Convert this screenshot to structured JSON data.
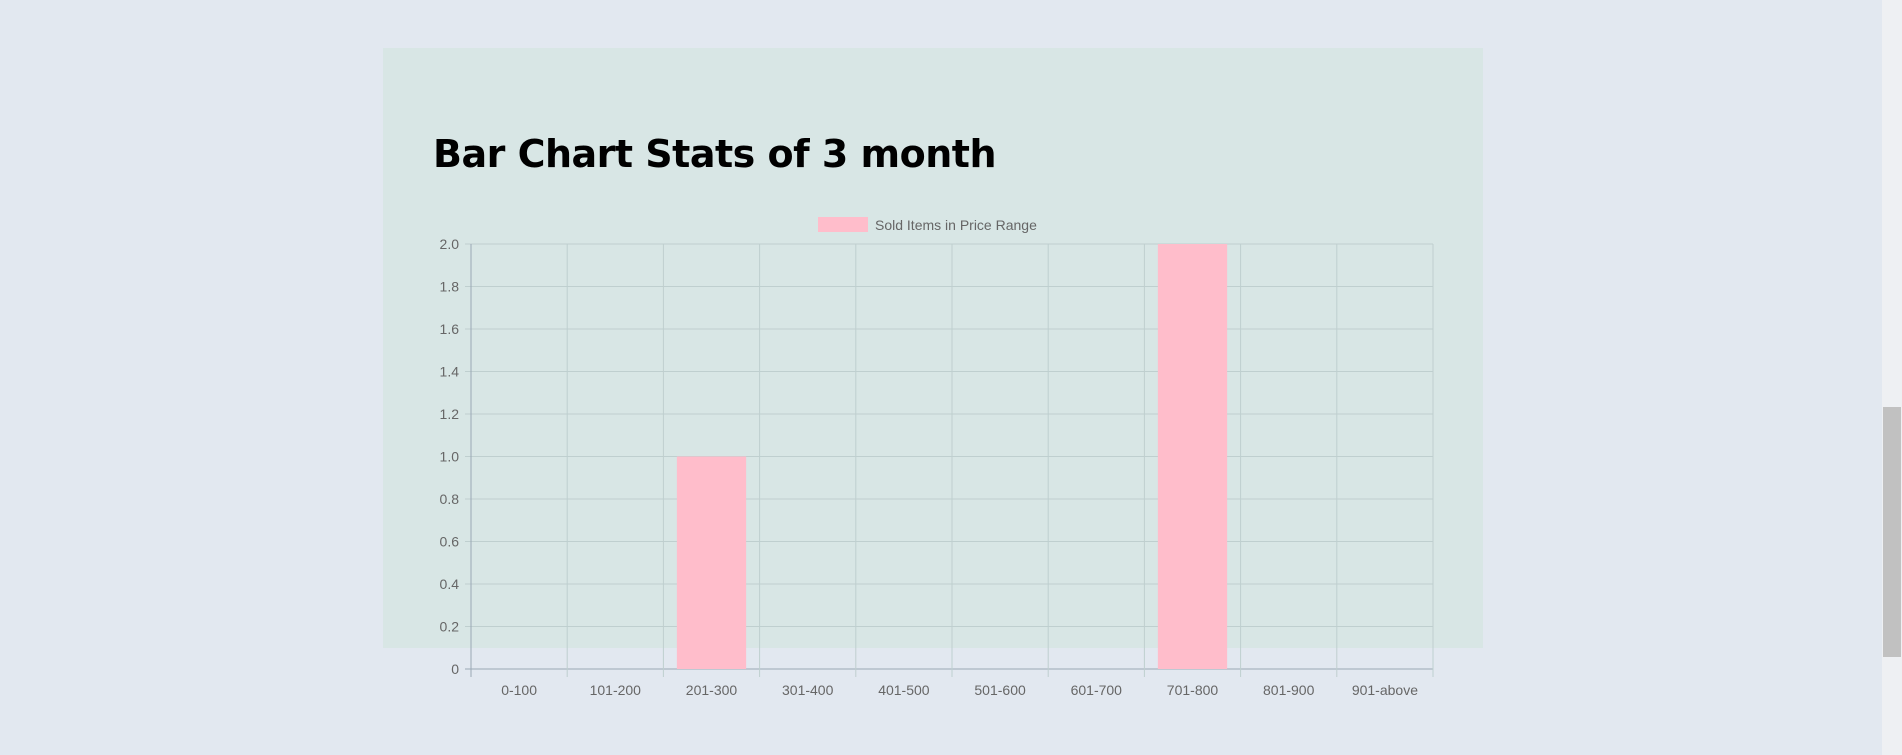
{
  "page": {
    "title": "Bar Chart Stats of 3 month"
  },
  "colors": {
    "page_background": "#e2e8f0",
    "panel_background": "#d8e6e5",
    "bar_fill": "#ffbdcb",
    "grid_line": "#bfcfcf",
    "tick_text": "#666666"
  },
  "chart_data": {
    "type": "bar",
    "categories": [
      "0-100",
      "101-200",
      "201-300",
      "301-400",
      "401-500",
      "501-600",
      "601-700",
      "701-800",
      "801-900",
      "901-above"
    ],
    "series": [
      {
        "name": "Sold Items in Price Range",
        "values": [
          0,
          0,
          1,
          0,
          0,
          0,
          0,
          2,
          0,
          0
        ]
      }
    ],
    "ylim": [
      0,
      2
    ],
    "y_ticks": [
      "0",
      "0.2",
      "0.4",
      "0.6",
      "0.8",
      "1.0",
      "1.2",
      "1.4",
      "1.6",
      "1.8",
      "2.0"
    ],
    "legend_position": "top-center",
    "grid": true
  }
}
